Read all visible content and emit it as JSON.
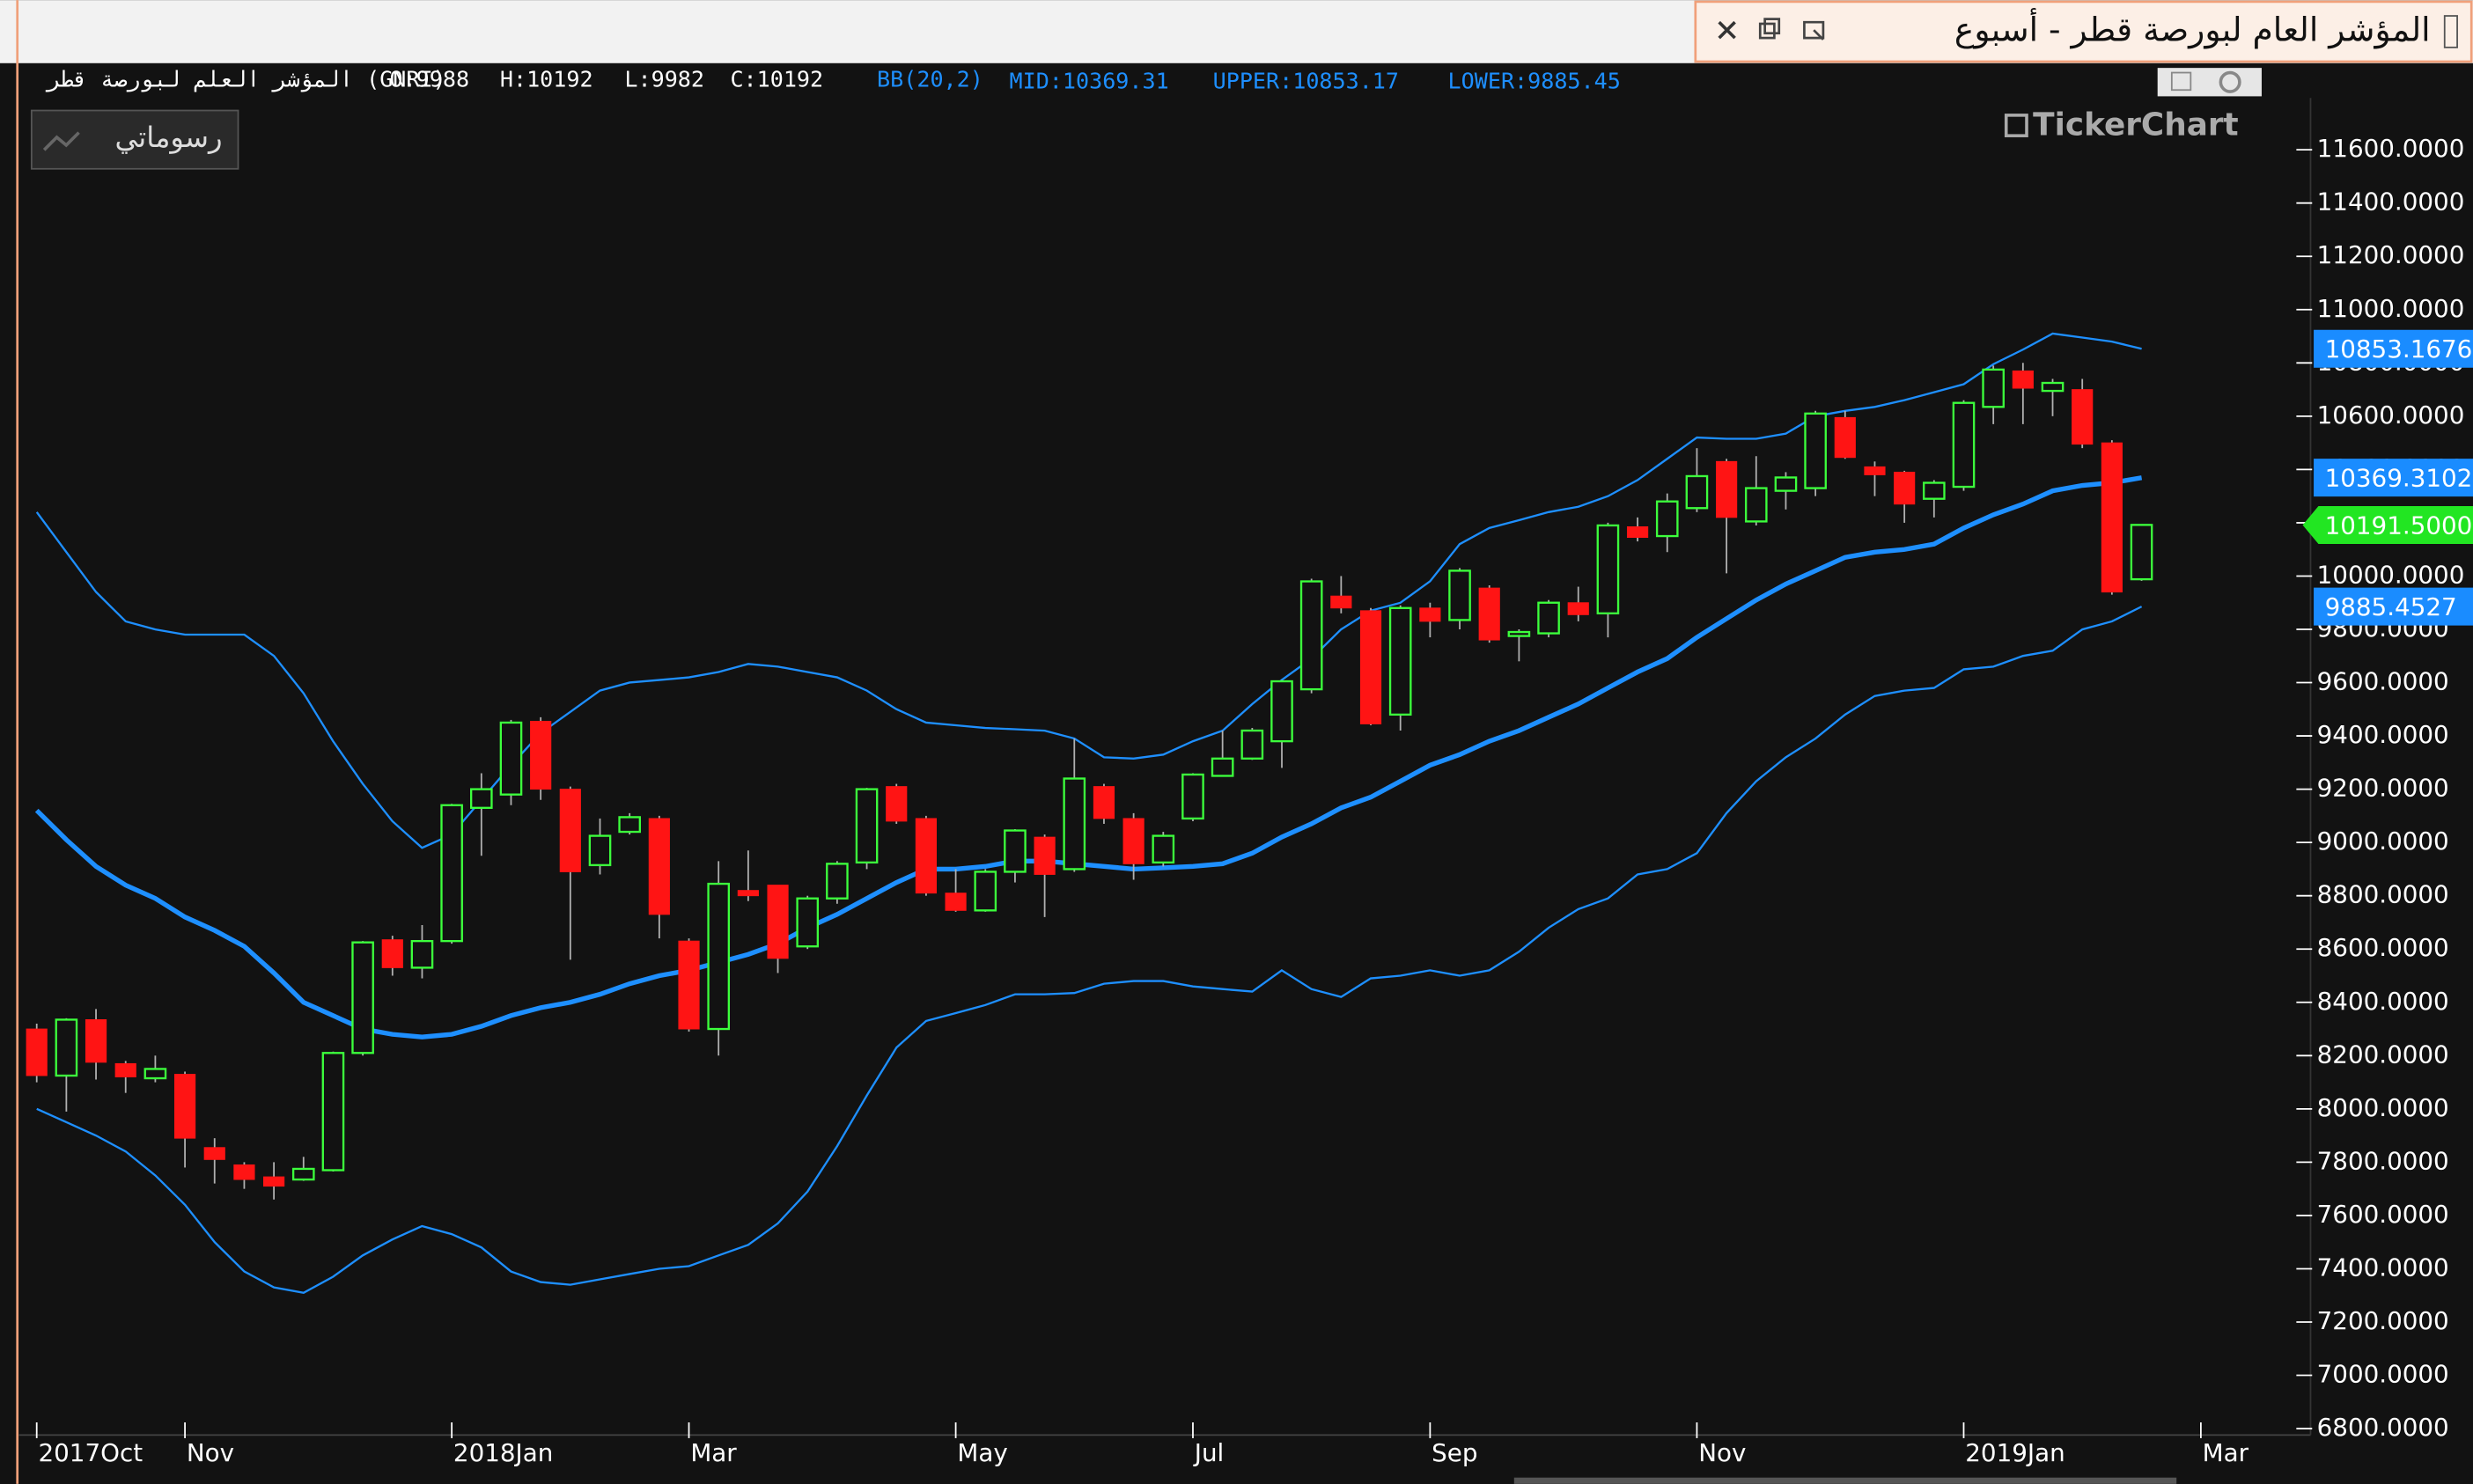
{
  "window": {
    "title": "المؤشر العام لبورصة قطر - أسبوع",
    "symbol": "المؤشر العلم لبورصة قطر (GNRI)",
    "ohlc_text": [
      "O:9988",
      "H:10192",
      "L:9982",
      "C:10192"
    ],
    "indicator_text": [
      "BB(20,2)",
      "MID:10369.31",
      "UPPER:10853.17",
      "LOWER:9885.45"
    ],
    "button": "رسوماتي",
    "logo": "TickerChart"
  },
  "chart_data": {
    "type": "candlestick",
    "up_color": "#3cff3c",
    "down_color": "#ff1414",
    "band_color": "#1e8fff",
    "xlim": [
      -0.6,
      76.7
    ],
    "ylim": [
      6776,
      11925
    ],
    "xticks": [
      {
        "value": 0,
        "label": "2017Oct"
      },
      {
        "value": 5,
        "label": "Nov"
      },
      {
        "value": 14,
        "label": "2018Jan"
      },
      {
        "value": 22,
        "label": "Mar"
      },
      {
        "value": 31,
        "label": "May"
      },
      {
        "value": 39,
        "label": "Jul"
      },
      {
        "value": 47,
        "label": "Sep"
      },
      {
        "value": 56,
        "label": "Nov"
      },
      {
        "value": 65,
        "label": "2019Jan"
      },
      {
        "value": 73,
        "label": "Mar"
      }
    ],
    "yticks": [
      {
        "value": 11600,
        "label": "11600.0000"
      },
      {
        "value": 11400,
        "label": "11400.0000"
      },
      {
        "value": 11200,
        "label": "11200.0000"
      },
      {
        "value": 11000,
        "label": "11000.0000"
      },
      {
        "value": 10800,
        "label": "10800.0000"
      },
      {
        "value": 10600,
        "label": "10600.0000"
      },
      {
        "value": 10400,
        "label": "10400.0000"
      },
      {
        "value": 10200,
        "label": "10200.0000"
      },
      {
        "value": 10000,
        "label": "10000.0000"
      },
      {
        "value": 9800,
        "label": "9800.0000"
      },
      {
        "value": 9600,
        "label": "9600.0000"
      },
      {
        "value": 9400,
        "label": "9400.0000"
      },
      {
        "value": 9200,
        "label": "9200.0000"
      },
      {
        "value": 9000,
        "label": "9000.0000"
      },
      {
        "value": 8800,
        "label": "8800.0000"
      },
      {
        "value": 8600,
        "label": "8600.0000"
      },
      {
        "value": 8400,
        "label": "8400.0000"
      },
      {
        "value": 8200,
        "label": "8200.0000"
      },
      {
        "value": 8000,
        "label": "8000.0000"
      },
      {
        "value": 7800,
        "label": "7800.0000"
      },
      {
        "value": 7600,
        "label": "7600.0000"
      },
      {
        "value": 7400,
        "label": "7400.0000"
      },
      {
        "value": 7200,
        "label": "7200.0000"
      },
      {
        "value": 7000,
        "label": "7000.0000"
      },
      {
        "value": 6800,
        "label": "6800.0000"
      }
    ],
    "open": [
      8300,
      8125,
      8335,
      8170,
      8115,
      8130,
      7855,
      7790,
      7745,
      7735,
      7770,
      8210,
      8635,
      8530,
      8630,
      9130,
      9180,
      9455,
      9200,
      8915,
      9040,
      9090,
      8630,
      8300,
      8820,
      8840,
      8610,
      8790,
      8925,
      9210,
      9090,
      8810,
      8745,
      8890,
      9020,
      8900,
      9210,
      9090,
      8925,
      9090,
      9250,
      9315,
      9380,
      9575,
      9925,
      9870,
      9480,
      9880,
      9835,
      9955,
      9775,
      9785,
      9900,
      9860,
      10185,
      10150,
      10255,
      10430,
      10205,
      10320,
      10330,
      10595,
      10410,
      10390,
      10290,
      10335,
      10635,
      10770,
      10695,
      10700,
      10500,
      9988
    ],
    "high": [
      8320,
      8340,
      8375,
      8180,
      8200,
      8140,
      7890,
      7800,
      7800,
      7820,
      8215,
      8630,
      8650,
      8690,
      9145,
      9260,
      9460,
      9470,
      9210,
      9090,
      9110,
      9100,
      8640,
      8930,
      8970,
      8840,
      8800,
      8930,
      9205,
      9220,
      9100,
      8900,
      8900,
      9050,
      9030,
      9390,
      9220,
      9110,
      9040,
      9260,
      9420,
      9430,
      9610,
      9990,
      10000,
      9880,
      9890,
      9900,
      10030,
      9965,
      9800,
      9910,
      9960,
      10200,
      10220,
      10310,
      10480,
      10440,
      10450,
      10390,
      10620,
      10620,
      10430,
      10395,
      10360,
      10660,
      10790,
      10800,
      10740,
      10740,
      10510,
      10192
    ],
    "low": [
      8100,
      7990,
      8110,
      8060,
      8100,
      7780,
      7720,
      7700,
      7660,
      7730,
      7765,
      8200,
      8500,
      8490,
      8620,
      8950,
      9140,
      9160,
      8560,
      8880,
      9030,
      8640,
      8290,
      8200,
      8780,
      8510,
      8600,
      8770,
      8900,
      9070,
      8800,
      8740,
      8740,
      8850,
      8720,
      8890,
      9070,
      8860,
      8910,
      9080,
      9250,
      9310,
      9280,
      9560,
      9860,
      9440,
      9420,
      9770,
      9800,
      9750,
      9680,
      9770,
      9830,
      9770,
      10130,
      10090,
      10240,
      10010,
      10190,
      10250,
      10300,
      10440,
      10300,
      10200,
      10220,
      10320,
      10570,
      10570,
      10600,
      10480,
      9930,
      9982
    ],
    "close": [
      8125,
      8335,
      8175,
      8120,
      8150,
      7890,
      7810,
      7735,
      7710,
      7775,
      8210,
      8625,
      8530,
      8630,
      9140,
      9200,
      9450,
      9200,
      8890,
      9025,
      9095,
      8730,
      8300,
      8845,
      8800,
      8565,
      8790,
      8920,
      9200,
      9080,
      8810,
      8745,
      8890,
      9045,
      8880,
      9240,
      9090,
      8920,
      9025,
      9255,
      9315,
      9420,
      9605,
      9980,
      9880,
      9445,
      9880,
      9830,
      10020,
      9760,
      9790,
      9900,
      9855,
      10190,
      10145,
      10280,
      10375,
      10220,
      10330,
      10370,
      10610,
      10445,
      10380,
      10270,
      10350,
      10650,
      10775,
      10705,
      10725,
      10495,
      9940,
      10192
    ],
    "bands": {
      "upper": [
        10240,
        10090,
        9940,
        9830,
        9800,
        9780,
        9780,
        9780,
        9700,
        9560,
        9380,
        9220,
        9080,
        8980,
        9030,
        9160,
        9290,
        9410,
        9490,
        9570,
        9600,
        9610,
        9620,
        9640,
        9670,
        9660,
        9640,
        9620,
        9570,
        9500,
        9450,
        9440,
        9430,
        9425,
        9420,
        9390,
        9320,
        9315,
        9330,
        9380,
        9420,
        9520,
        9610,
        9690,
        9800,
        9870,
        9900,
        9980,
        10120,
        10180,
        10210,
        10240,
        10260,
        10300,
        10360,
        10440,
        10520,
        10515,
        10515,
        10535,
        10600,
        10620,
        10635,
        10660,
        10690,
        10720,
        10795,
        10850,
        10910,
        10895,
        10880,
        10853.1676
      ],
      "middle": [
        9120,
        9010,
        8910,
        8840,
        8790,
        8720,
        8670,
        8610,
        8510,
        8400,
        8350,
        8300,
        8280,
        8270,
        8280,
        8310,
        8350,
        8380,
        8400,
        8430,
        8470,
        8500,
        8520,
        8550,
        8580,
        8620,
        8680,
        8730,
        8790,
        8850,
        8900,
        8900,
        8910,
        8930,
        8930,
        8920,
        8910,
        8900,
        8905,
        8910,
        8920,
        8960,
        9020,
        9070,
        9130,
        9170,
        9230,
        9290,
        9330,
        9380,
        9420,
        9470,
        9520,
        9580,
        9640,
        9690,
        9770,
        9840,
        9910,
        9970,
        10020,
        10070,
        10090,
        10100,
        10120,
        10180,
        10230,
        10270,
        10320,
        10340,
        10350,
        10369.3102
      ],
      "lower": [
        8000,
        7950,
        7900,
        7840,
        7750,
        7640,
        7500,
        7390,
        7330,
        7310,
        7370,
        7450,
        7510,
        7560,
        7530,
        7480,
        7390,
        7350,
        7340,
        7360,
        7380,
        7400,
        7410,
        7450,
        7490,
        7570,
        7690,
        7860,
        8050,
        8230,
        8330,
        8360,
        8390,
        8430,
        8430,
        8435,
        8470,
        8480,
        8480,
        8460,
        8450,
        8440,
        8520,
        8450,
        8420,
        8490,
        8500,
        8520,
        8500,
        8520,
        8590,
        8680,
        8750,
        8790,
        8880,
        8900,
        8960,
        9110,
        9230,
        9320,
        9390,
        9480,
        9550,
        9570,
        9580,
        9650,
        9660,
        9700,
        9720,
        9800,
        9830,
        9885.4527
      ]
    },
    "price_tags": [
      {
        "value": 10853.1676,
        "label": "10853.1676",
        "color": "#1a8cff",
        "text_color": "#ffffff"
      },
      {
        "value": 10369.3102,
        "label": "10369.3102",
        "color": "#1a8cff",
        "text_color": "#ffffff"
      },
      {
        "value": 10191.5,
        "label": "10191.5000",
        "color": "#22e622",
        "text_color": "#000000"
      },
      {
        "value": 9885.4527,
        "label": "9885.4527",
        "color": "#1a8cff",
        "text_color": "#ffffff"
      }
    ]
  }
}
